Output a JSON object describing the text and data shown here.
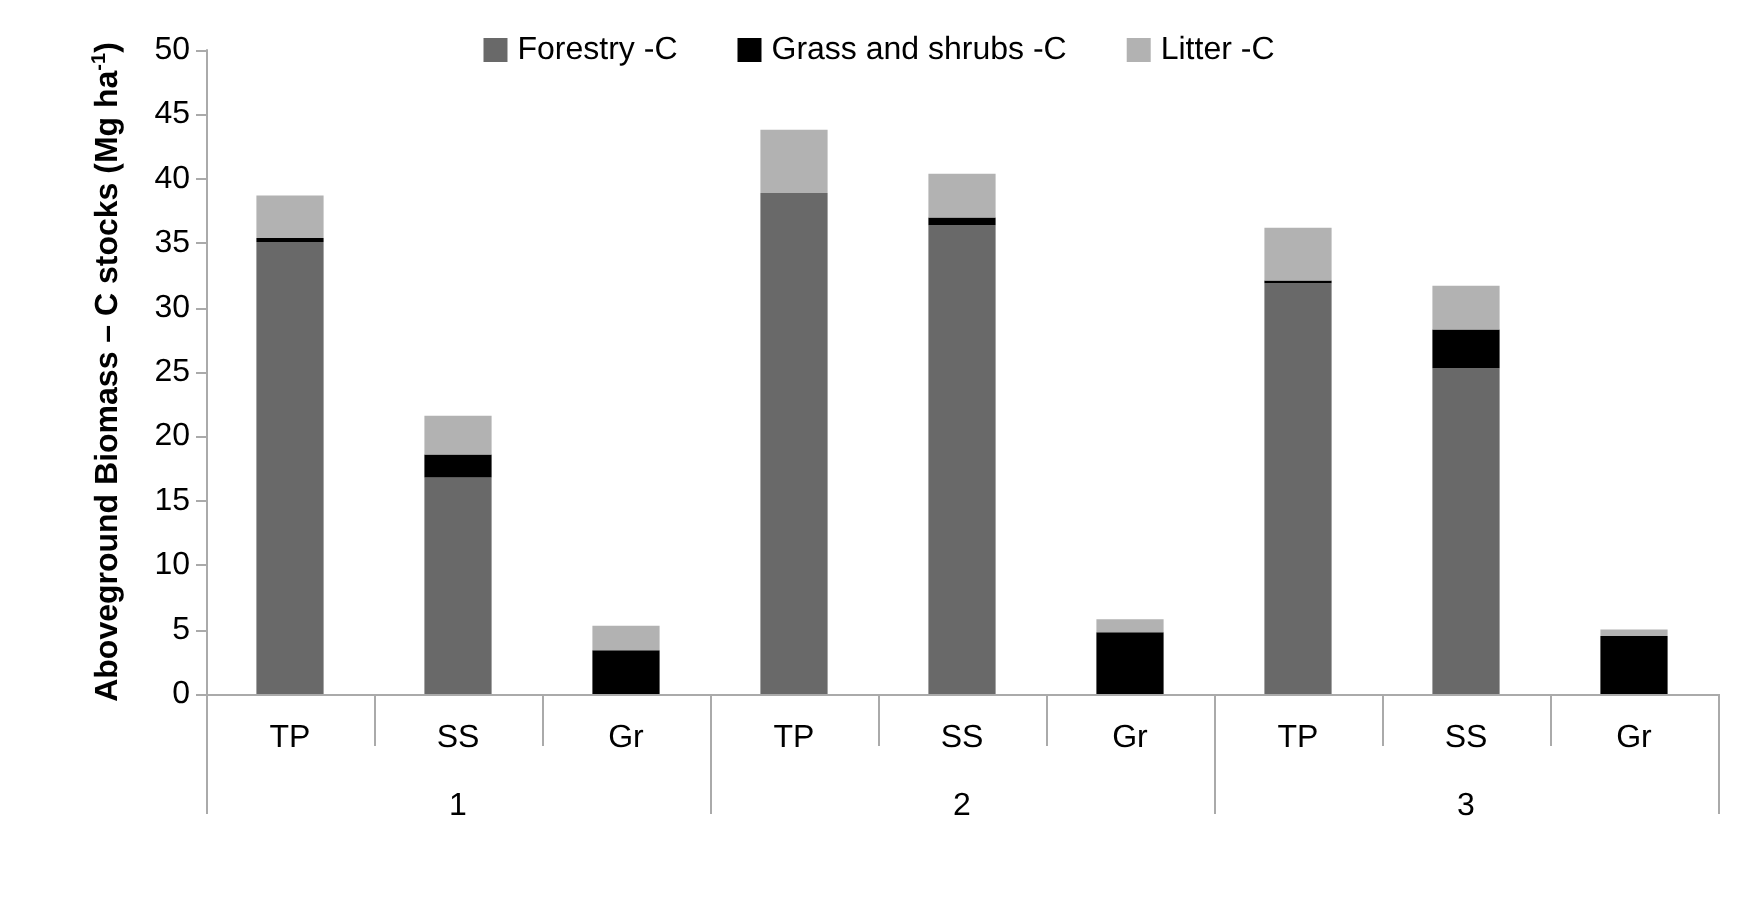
{
  "chart_data": {
    "type": "bar",
    "stacked": true,
    "ylabel": "Aboveground Biomass – C stocks (Mg ha$^{-1}$)",
    "categories": [
      "TP",
      "SS",
      "Gr",
      "TP",
      "SS",
      "Gr",
      "TP",
      "SS",
      "Gr"
    ],
    "annotations": [
      "1",
      "2",
      "3"
    ],
    "series": [
      {
        "name": "Forestry -C",
        "color": "#696969",
        "values": [
          35.1,
          16.8,
          0,
          38.9,
          36.4,
          0,
          31.9,
          25.3,
          0
        ]
      },
      {
        "name": "Grass and shrubs -C",
        "color": "#000000",
        "values": [
          0.3,
          1.8,
          3.4,
          0,
          0.6,
          4.8,
          0.2,
          3.0,
          4.5
        ]
      },
      {
        "name": "Litter -C",
        "color": "#b2b2b2",
        "values": [
          3.3,
          3.0,
          1.9,
          4.9,
          3.4,
          1.0,
          4.1,
          3.4,
          0.5
        ]
      }
    ],
    "ylim": [
      0,
      50
    ],
    "yticks": [
      0,
      5,
      10,
      15,
      20,
      25,
      30,
      35,
      40,
      45,
      50
    ],
    "grid": false,
    "legend": "top"
  }
}
